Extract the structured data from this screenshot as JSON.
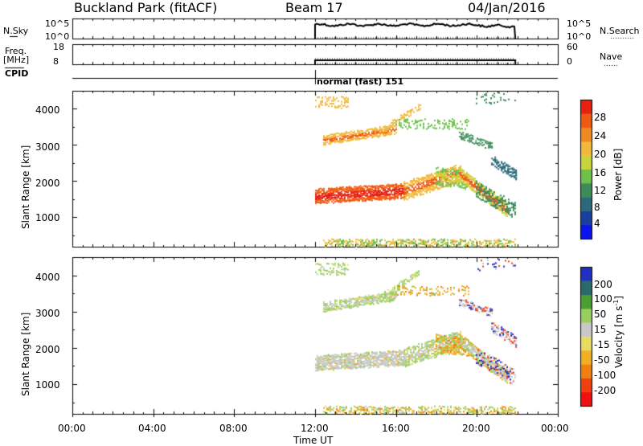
{
  "header": {
    "title": "Buckland Park (fitACF)",
    "beam": "Beam 17",
    "date": "04/Jan/2016"
  },
  "aux_panels": {
    "nsky_label": "N.Sky",
    "nsearch_label": "N.Search",
    "noise_ticks": [
      "10^5",
      "10^0"
    ],
    "freq_label_1": "Freq.",
    "freq_label_2": "[MHz]",
    "freq_ticks": [
      "18",
      "8"
    ],
    "nave_label": "Nave",
    "nave_ticks": [
      "60",
      "0"
    ],
    "cpid_label": "CPID",
    "cpid_value": "normal (fast) 151"
  },
  "colors": {
    "power_scale": [
      "#0a14f0",
      "#1a3fa0",
      "#2a6a7a",
      "#3c8c5a",
      "#6dc04a",
      "#c9d43a",
      "#f2b83a",
      "#f08a20",
      "#f05a10",
      "#e82010"
    ],
    "velocity_scale": [
      "#f01010",
      "#f04010",
      "#f08010",
      "#f0b020",
      "#e8dc60",
      "#c8c8c8",
      "#98d060",
      "#48a030",
      "#2a6a6a",
      "#2030c0"
    ]
  },
  "chart_data": [
    {
      "type": "heatmap",
      "panel": "power",
      "ylabel": "Slant Range [km]",
      "ylim": [
        180,
        4500
      ],
      "yticks": [
        "1000",
        "2000",
        "3000",
        "4000"
      ],
      "xlim": [
        0,
        24
      ],
      "colorbar_label": "Power [dB]",
      "colorbar_ticks": [
        "4",
        "8",
        "12",
        "16",
        "20",
        "24",
        "28"
      ],
      "colorbar_range": [
        0,
        30
      ]
    },
    {
      "type": "heatmap",
      "panel": "velocity",
      "ylabel": "Slant Range [km]",
      "ylim": [
        180,
        4500
      ],
      "yticks": [
        "1000",
        "2000",
        "3000",
        "4000"
      ],
      "xlim": [
        0,
        24
      ],
      "colorbar_label": "Velocity [m s",
      "colorbar_label_sup": "-1",
      "colorbar_label_end": "]",
      "colorbar_ticks": [
        "200",
        "100",
        "50",
        "15",
        "-15",
        "-50",
        "-100",
        "-200"
      ]
    },
    {
      "type": "line",
      "panel": "time-axis",
      "xlabel": "Time UT",
      "xticks": [
        "00:00",
        "04:00",
        "08:00",
        "12:00",
        "16:00",
        "20:00",
        "00:00"
      ],
      "xtick_hours": [
        0,
        4,
        8,
        12,
        16,
        20,
        24
      ],
      "data_start_hour": 12.0,
      "data_end_hour": 21.9
    }
  ]
}
